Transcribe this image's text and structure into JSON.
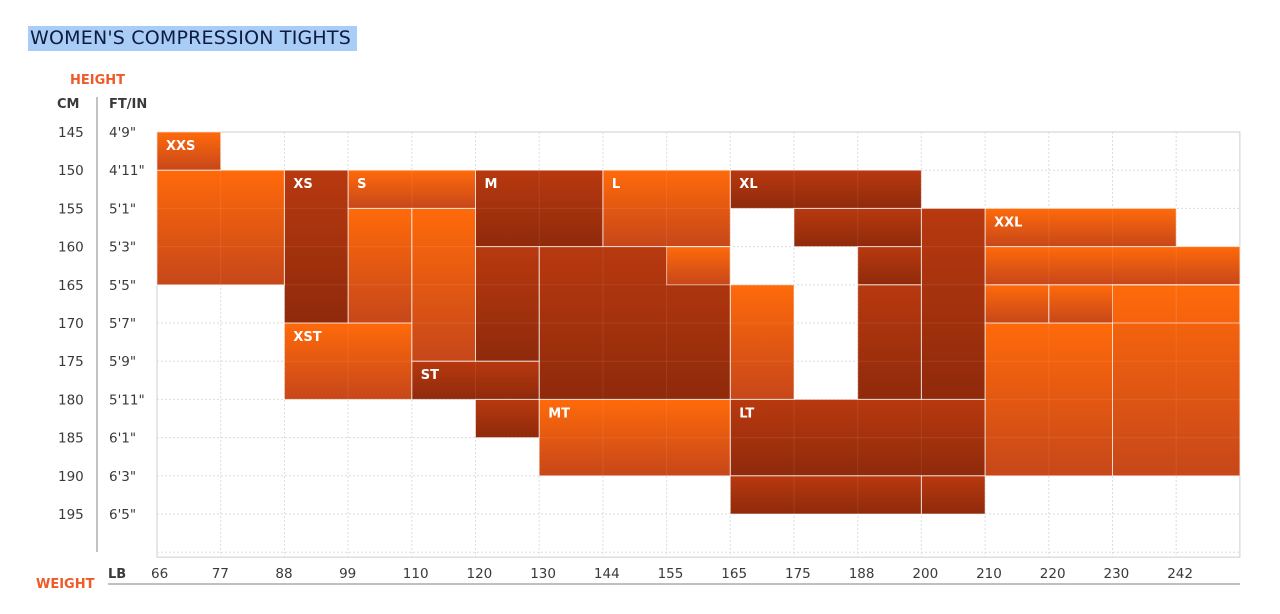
{
  "title": "WOMEN'S COMPRESSION TIGHTS",
  "chart_data": {
    "type": "heatmap",
    "title": "WOMEN'S COMPRESSION TIGHTS",
    "y_axis_label": "HEIGHT",
    "x_axis_label": "WEIGHT",
    "cm_header": "CM",
    "ftin_header": "FT/IN",
    "lb_header": "LB",
    "height_cm": [
      "145",
      "150",
      "155",
      "160",
      "165",
      "170",
      "175",
      "180",
      "185",
      "190",
      "195"
    ],
    "height_ftin": [
      "4'9\"",
      "4'11\"",
      "5'1\"",
      "5'3\"",
      "5'5\"",
      "5'7\"",
      "5'9\"",
      "5'11\"",
      "6'1\"",
      "6'3\"",
      "6'5\""
    ],
    "weight_lb": [
      "66",
      "77",
      "88",
      "99",
      "110",
      "120",
      "130",
      "144",
      "155",
      "165",
      "175",
      "188",
      "200",
      "210",
      "220",
      "230",
      "242"
    ],
    "sizes": [
      {
        "label": "XXS",
        "shade": "light",
        "cells": [
          [
            0,
            0,
            1,
            1
          ],
          [
            0,
            1,
            2,
            4
          ]
        ]
      },
      {
        "label": "XS",
        "shade": "dark",
        "cells": [
          [
            2,
            1,
            3,
            5
          ]
        ]
      },
      {
        "label": "S",
        "shade": "light",
        "cells": [
          [
            3,
            1,
            5,
            2
          ],
          [
            3,
            2,
            4,
            5
          ],
          [
            4,
            2,
            5,
            6
          ]
        ]
      },
      {
        "label": "M",
        "shade": "dark",
        "cells": [
          [
            5,
            1,
            7,
            3
          ],
          [
            5,
            3,
            6,
            6
          ],
          [
            6,
            3,
            9,
            7
          ]
        ]
      },
      {
        "label": "L",
        "shade": "light",
        "cells": [
          [
            7,
            1,
            9,
            3
          ],
          [
            8,
            3,
            9,
            4
          ],
          [
            9,
            4,
            10,
            7
          ]
        ]
      },
      {
        "label": "XL",
        "shade": "dark",
        "cells": [
          [
            9,
            1,
            12,
            2
          ],
          [
            10,
            2,
            12,
            3
          ],
          [
            11,
            3,
            12,
            4
          ],
          [
            11,
            4,
            12,
            7
          ],
          [
            12,
            2,
            13,
            7
          ]
        ]
      },
      {
        "label": "XXL",
        "shade": "light",
        "cells": [
          [
            13,
            2,
            16,
            3
          ],
          [
            13,
            3,
            17,
            4
          ],
          [
            14,
            4,
            17,
            5
          ],
          [
            13,
            4,
            14,
            5
          ],
          [
            15,
            4,
            17,
            9
          ],
          [
            13,
            5,
            15,
            9
          ]
        ]
      },
      {
        "label": "XST",
        "shade": "light",
        "cells": [
          [
            2,
            5,
            4,
            7
          ]
        ]
      },
      {
        "label": "ST",
        "shade": "dark",
        "cells": [
          [
            4,
            6,
            6,
            7
          ],
          [
            5,
            7,
            6,
            8
          ]
        ]
      },
      {
        "label": "MT",
        "shade": "light",
        "cells": [
          [
            6,
            7,
            9,
            9
          ]
        ]
      },
      {
        "label": "LT",
        "shade": "dark",
        "cells": [
          [
            9,
            7,
            13,
            9
          ],
          [
            12,
            9,
            13,
            10
          ],
          [
            9,
            9,
            12,
            10
          ]
        ]
      }
    ],
    "colors": {
      "light_top": "#ff6a0a",
      "light_bottom": "#c7471a",
      "dark_top": "#b73a10",
      "dark_bottom": "#8e2a0c",
      "accent": "#ef5a28",
      "grid": "#dddddd",
      "divider": "#ffffff"
    },
    "grid": true
  }
}
